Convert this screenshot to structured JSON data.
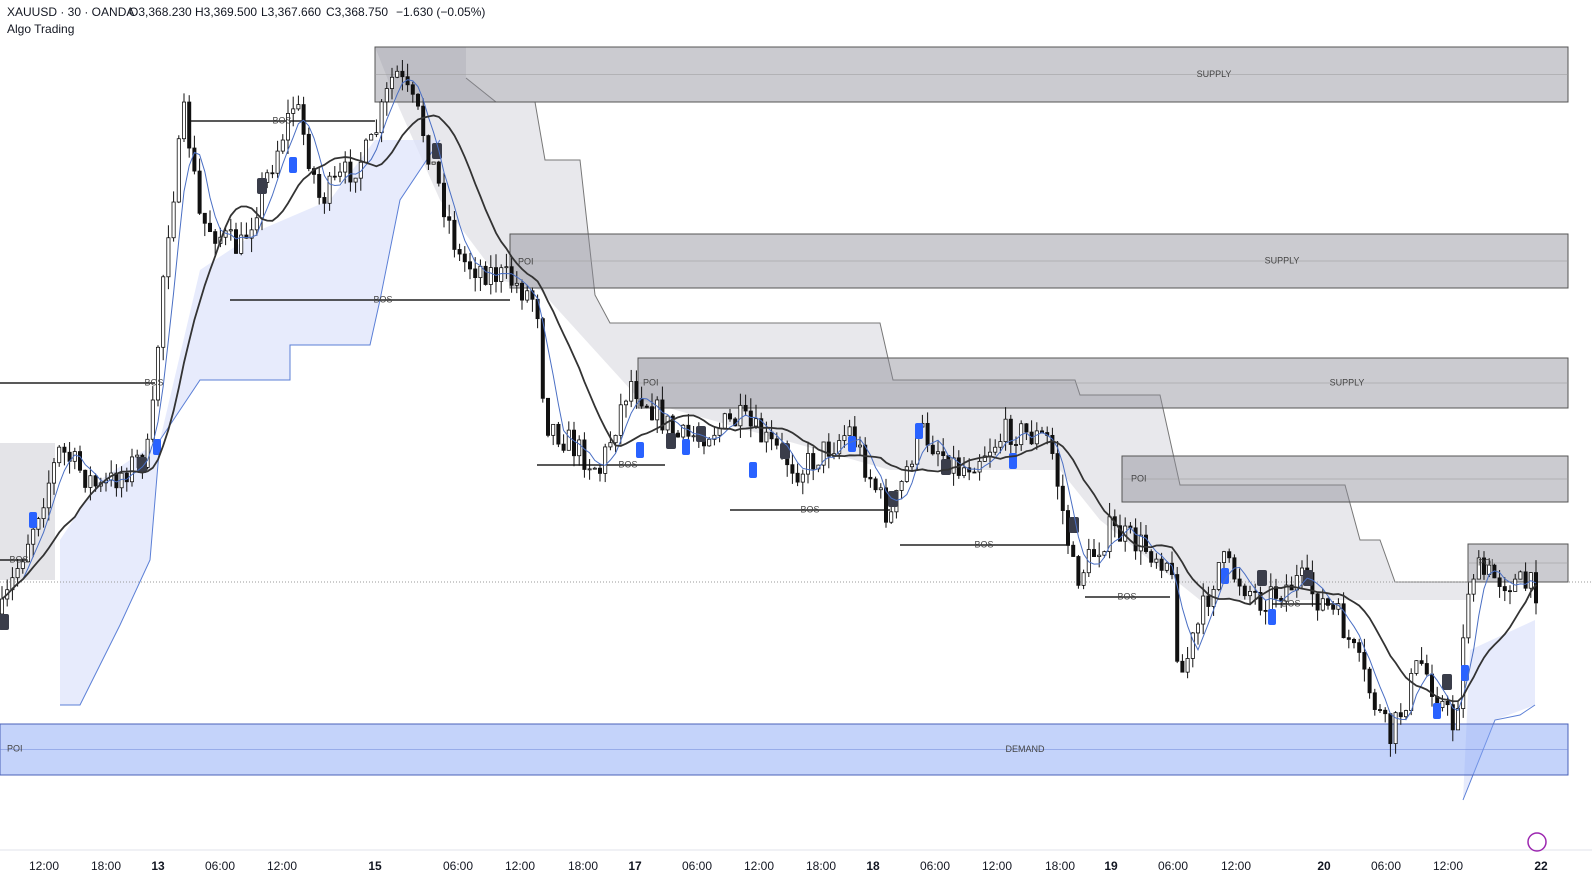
{
  "header": {
    "symbol": "XAUUSD · 30 · OANDA",
    "open": "O3,368.230",
    "high": "H3,369.500",
    "low": "L3,367.660",
    "close": "C3,368.750",
    "change": "−1.630 (−0.05%)",
    "indicator": "Algo Trading"
  },
  "zones": [
    {
      "label": "SUPPLY"
    },
    {
      "label": "SUPPLY"
    },
    {
      "label": "SUPPLY"
    },
    {
      "label": "POI"
    },
    {
      "label": "POI"
    },
    {
      "label": "DEMAND"
    }
  ],
  "poi_labels": [
    "POI",
    "POI",
    "POI"
  ],
  "bos_labels": [
    "BOS",
    "BOS",
    "BOS",
    "BOS",
    "BOS",
    "BOS",
    "BOS",
    "BOS",
    "BOS"
  ],
  "time_axis": [
    "12:00",
    "18:00",
    "13",
    "06:00",
    "12:00",
    "15",
    "06:00",
    "12:00",
    "18:00",
    "17",
    "06:00",
    "12:00",
    "18:00",
    "18",
    "06:00",
    "12:00",
    "18:00",
    "19",
    "06:00",
    "12:00",
    "20",
    "06:00",
    "12:00",
    "22"
  ]
}
